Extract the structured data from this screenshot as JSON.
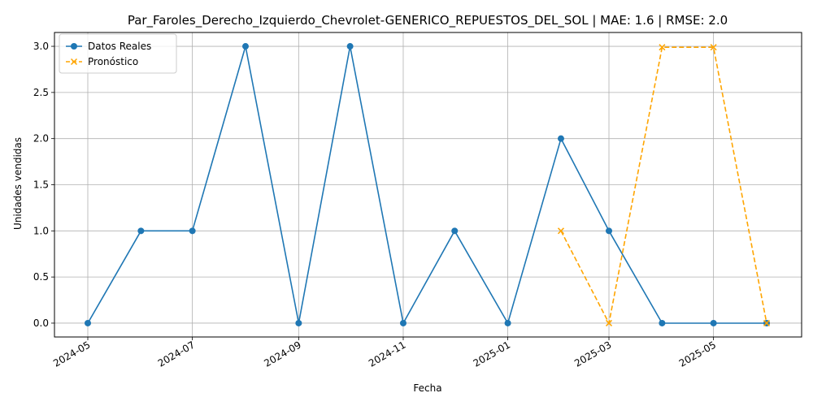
{
  "chart_data": {
    "type": "line",
    "title": "Par_Faroles_Derecho_Izquierdo_Chevrolet-GENERICO_REPUESTOS_DEL_SOL | MAE: 1.6 | RMSE: 2.0",
    "xlabel": "Fecha",
    "ylabel": "Unidades vendidas",
    "ylim": [
      -0.15,
      3.15
    ],
    "yticks": [
      "0.0",
      "0.5",
      "1.0",
      "1.5",
      "2.0",
      "2.5",
      "3.0"
    ],
    "xticks": [
      "2024-05",
      "2024-07",
      "2024-09",
      "2024-11",
      "2025-01",
      "2025-03",
      "2025-05"
    ],
    "grid": true,
    "legend_position": "top-left",
    "series": [
      {
        "name": "Datos Reales",
        "color": "#1f77b4",
        "style": "solid",
        "marker": "circle",
        "x": [
          "2024-05-01",
          "2024-06-01",
          "2024-07-01",
          "2024-08-01",
          "2024-09-01",
          "2024-10-01",
          "2024-11-01",
          "2024-12-01",
          "2025-01-01",
          "2025-02-01",
          "2025-03-01",
          "2025-04-01",
          "2025-05-01",
          "2025-06-01"
        ],
        "values": [
          0,
          1,
          1,
          3,
          0,
          3,
          0,
          1,
          0,
          2,
          1,
          0,
          0,
          0
        ]
      },
      {
        "name": "Pronóstico",
        "color": "#ffa500",
        "style": "dashed",
        "marker": "x",
        "x": [
          "2025-02-01",
          "2025-03-01",
          "2025-04-01",
          "2025-05-01",
          "2025-06-01"
        ],
        "values": [
          1.0,
          0.0,
          2.99,
          2.99,
          0.0
        ]
      }
    ]
  }
}
